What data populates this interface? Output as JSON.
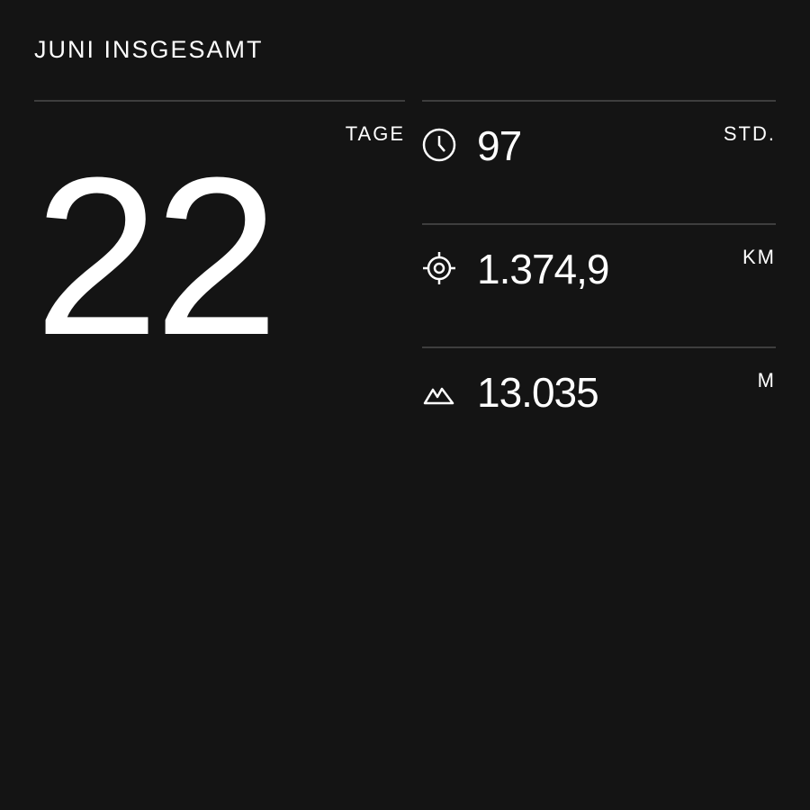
{
  "title": "JUNI INSGESAMT",
  "days": {
    "value": "22",
    "unit": "TAGE"
  },
  "stats": [
    {
      "icon": "clock-icon",
      "value": "97",
      "unit": "STD."
    },
    {
      "icon": "target-icon",
      "value": "1.374,9",
      "unit": "KM"
    },
    {
      "icon": "mountain-icon",
      "value": "13.035",
      "unit": "M"
    }
  ]
}
